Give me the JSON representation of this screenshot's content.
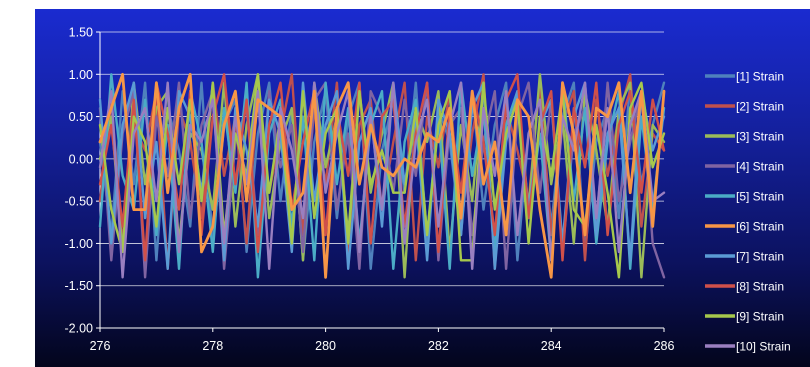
{
  "chart_data": {
    "type": "line",
    "title": "",
    "xlabel": "",
    "ylabel": "",
    "xlim": [
      276,
      286
    ],
    "ylim": [
      -2.0,
      1.5
    ],
    "x_ticks": [
      "276",
      "278",
      "280",
      "282",
      "284",
      "286"
    ],
    "y_ticks": [
      "1.50",
      "1.00",
      "0.50",
      "0.00",
      "-0.50",
      "-1.00",
      "-1.50",
      "-2.00"
    ],
    "grid": "horizontal",
    "legend_position": "right",
    "x": [
      276.0,
      276.2,
      276.4,
      276.6,
      276.8,
      277.0,
      277.2,
      277.4,
      277.6,
      277.8,
      278.0,
      278.2,
      278.4,
      278.6,
      278.8,
      279.0,
      279.2,
      279.4,
      279.6,
      279.8,
      280.0,
      280.2,
      280.4,
      280.6,
      280.8,
      281.0,
      281.2,
      281.4,
      281.6,
      281.8,
      282.0,
      282.2,
      282.4,
      282.6,
      282.8,
      283.0,
      283.2,
      283.4,
      283.6,
      283.8,
      284.0,
      284.2,
      284.4,
      284.6,
      284.8,
      285.0,
      285.2,
      285.4,
      285.6,
      285.8,
      286.0
    ],
    "series": [
      {
        "name": "[1] Strain",
        "color": "#4f81bd",
        "values": [
          0.2,
          -0.9,
          0.8,
          -0.3,
          0.9,
          -1.2,
          0.6,
          0.1,
          -0.8,
          0.9,
          -1.0,
          0.4,
          0.7,
          -1.1,
          0.3,
          0.9,
          -0.5,
          0.6,
          -1.2,
          0.2,
          0.8,
          -0.7,
          0.5,
          0.9,
          -1.3,
          0.1,
          0.7,
          -0.4,
          0.9,
          -1.0,
          0.6,
          0.2,
          -0.9,
          0.8,
          -0.6,
          0.4,
          0.9,
          -1.2,
          0.3,
          0.7,
          -0.8,
          0.5,
          0.9,
          -1.1,
          0.2,
          0.6,
          -0.7,
          0.9,
          -0.3,
          0.4,
          0.9
        ]
      },
      {
        "name": "[2] Strain",
        "color": "#c0504d",
        "values": [
          -0.5,
          0.7,
          -1.0,
          0.4,
          0.1,
          0.8,
          -1.3,
          0.6,
          0.2,
          -0.7,
          0.9,
          -0.2,
          0.5,
          -1.0,
          0.8,
          -0.4,
          0.3,
          1.0,
          -0.9,
          0.6,
          -0.3,
          0.9,
          -1.1,
          0.4,
          0.7,
          -0.6,
          0.2,
          0.9,
          -1.2,
          0.5,
          -0.1,
          0.8,
          -0.8,
          0.3,
          1.0,
          -1.3,
          0.6,
          0.1,
          -0.5,
          0.9,
          -0.9,
          0.4,
          0.8,
          -1.2,
          0.7,
          -0.2,
          0.5,
          1.0,
          -0.8,
          0.3,
          0.1
        ]
      },
      {
        "name": "[3] Strain",
        "color": "#9bbb59",
        "values": [
          0.0,
          0.5,
          -1.1,
          0.9,
          -0.3,
          0.6,
          0.8,
          -1.0,
          0.3,
          0.1,
          -0.6,
          0.9,
          -0.8,
          0.4,
          1.0,
          -0.7,
          0.2,
          0.6,
          -1.2,
          0.9,
          -0.1,
          0.5,
          -0.9,
          0.8,
          -0.4,
          0.3,
          0.9,
          -1.4,
          0.6,
          0.2,
          0.8,
          -1.1,
          0.4,
          -0.5,
          0.9,
          -1.2,
          0.3,
          0.7,
          -0.6,
          1.0,
          -0.3,
          0.5,
          -1.0,
          0.8,
          0.1,
          -0.8,
          0.6,
          0.9,
          -1.4,
          0.4,
          0.2
        ]
      },
      {
        "name": "[4] Strain",
        "color": "#8064a2",
        "values": [
          0.6,
          -1.2,
          0.3,
          0.8,
          -1.4,
          0.5,
          -0.2,
          0.9,
          -0.7,
          0.4,
          0.8,
          -1.3,
          0.2,
          0.6,
          -0.9,
          0.8,
          -0.1,
          0.4,
          -1.1,
          0.7,
          0.9,
          -0.6,
          0.3,
          -1.3,
          0.8,
          0.5,
          -0.4,
          0.7,
          -0.2,
          0.9,
          -1.2,
          0.4,
          0.6,
          -0.9,
          0.2,
          0.8,
          -1.3,
          0.5,
          0.9,
          -0.4,
          0.7,
          -1.1,
          0.3,
          0.6,
          -0.8,
          0.9,
          -0.5,
          0.2,
          0.8,
          -1.0,
          -1.4
        ]
      },
      {
        "name": "[5] Strain",
        "color": "#4bacc6",
        "values": [
          -0.8,
          1.0,
          -0.2,
          -0.6,
          0.7,
          -0.9,
          0.4,
          -1.3,
          0.8,
          0.2,
          -1.1,
          0.6,
          -0.4,
          0.9,
          -1.4,
          0.3,
          0.7,
          -0.8,
          0.5,
          -1.2,
          0.9,
          -0.3,
          0.6,
          -1.0,
          0.4,
          0.8,
          -1.3,
          0.2,
          0.7,
          -0.9,
          0.5,
          -1.3,
          0.9,
          -0.2,
          0.6,
          -1.1,
          0.4,
          0.8,
          -0.7,
          0.3,
          -1.2,
          0.9,
          -0.5,
          0.6,
          -1.0,
          0.2,
          0.8,
          -1.3,
          0.5,
          -0.6,
          0.6
        ]
      },
      {
        "name": "[6] Strain",
        "color": "#f79646",
        "values": [
          0.2,
          0.6,
          1.0,
          -0.6,
          -0.6,
          0.9,
          -0.4,
          0.6,
          1.0,
          -1.1,
          -0.8,
          0.4,
          0.8,
          -0.5,
          0.7,
          0.6,
          0.5,
          -0.6,
          -0.4,
          0.8,
          -1.4,
          0.6,
          0.9,
          -0.3,
          0.4,
          -0.1,
          -0.2,
          0.0,
          -0.1,
          0.3,
          0.2,
          0.6,
          -0.7,
          0.8,
          -0.3,
          0.2,
          -0.9,
          0.7,
          0.5,
          -0.6,
          -1.4,
          0.9,
          0.3,
          -0.9,
          0.6,
          0.5,
          0.9,
          -0.4,
          0.8,
          -0.8,
          0.8
        ]
      },
      {
        "name": "[7] Strain",
        "color": "#5b9bd5",
        "values": [
          0.7,
          -1.0,
          0.4,
          0.9,
          -0.7,
          0.2,
          -1.3,
          0.8,
          0.5,
          -0.4,
          0.9,
          -1.2,
          0.6,
          0.1,
          -0.8,
          0.7,
          0.3,
          -1.1,
          0.9,
          -0.5,
          0.4,
          0.8,
          -1.3,
          0.2,
          0.6,
          -0.8,
          0.9,
          -0.3,
          0.5,
          -1.2,
          0.7,
          0.3,
          -0.9,
          0.6,
          0.9,
          -1.3,
          0.2,
          0.8,
          -0.6,
          0.4,
          0.7,
          -1.0,
          0.5,
          0.9,
          -0.9,
          0.3,
          0.6,
          -1.2,
          0.8,
          0.1,
          0.5
        ]
      },
      {
        "name": "[8] Strain",
        "color": "#d0504a",
        "values": [
          -0.3,
          0.4,
          -0.8,
          0.7,
          -1.2,
          0.9,
          0.3,
          -0.6,
          0.8,
          -0.9,
          0.5,
          1.0,
          -0.3,
          0.7,
          -1.1,
          0.4,
          0.9,
          -0.6,
          0.2,
          0.8,
          -0.9,
          0.6,
          -0.2,
          0.9,
          -1.0,
          0.5,
          0.7,
          -0.8,
          0.3,
          0.9,
          -1.1,
          0.6,
          -0.4,
          0.8,
          0.2,
          -0.9,
          0.7,
          1.0,
          -0.7,
          0.4,
          0.8,
          -1.2,
          0.6,
          -0.1,
          0.9,
          -0.9,
          0.4,
          0.8,
          -0.4,
          0.7,
          0.1
        ]
      },
      {
        "name": "[9] Strain",
        "color": "#a6c84c",
        "values": [
          0.4,
          -0.6,
          -1.1,
          0.5,
          0.2,
          -0.8,
          0.6,
          -0.3,
          0.7,
          -0.5,
          0.9,
          -0.9,
          0.3,
          -0.2,
          1.0,
          -0.4,
          0.5,
          -1.0,
          0.8,
          -0.7,
          0.3,
          0.6,
          -1.0,
          0.8,
          -0.3,
          0.1,
          -0.4,
          -0.4,
          0.6,
          -0.9,
          0.4,
          0.8,
          -1.2,
          -1.2,
          0.9,
          -0.6,
          0.3,
          0.7,
          -1.0,
          0.5,
          -0.2,
          0.8,
          -0.6,
          -0.8,
          0.4,
          -0.4,
          -1.4,
          0.6,
          0.9,
          -0.1,
          0.3
        ]
      },
      {
        "name": "[10] Strain",
        "color": "#9a7fc0",
        "values": [
          -0.1,
          0.8,
          -1.4,
          0.3,
          0.6,
          -0.5,
          0.9,
          -1.1,
          0.4,
          0.2,
          0.7,
          -1.0,
          0.5,
          -0.3,
          0.8,
          -1.3,
          0.6,
          0.1,
          -0.7,
          0.9,
          -0.4,
          0.3,
          0.8,
          -1.1,
          0.5,
          -0.6,
          0.9,
          -1.0,
          0.2,
          0.7,
          -0.8,
          0.4,
          0.9,
          -1.3,
          0.6,
          -0.2,
          0.8,
          -0.9,
          0.3,
          0.7,
          -1.2,
          0.5,
          0.1,
          0.9,
          -0.7,
          0.6,
          -1.1,
          0.4,
          0.8,
          -0.5,
          -0.4
        ]
      }
    ]
  }
}
